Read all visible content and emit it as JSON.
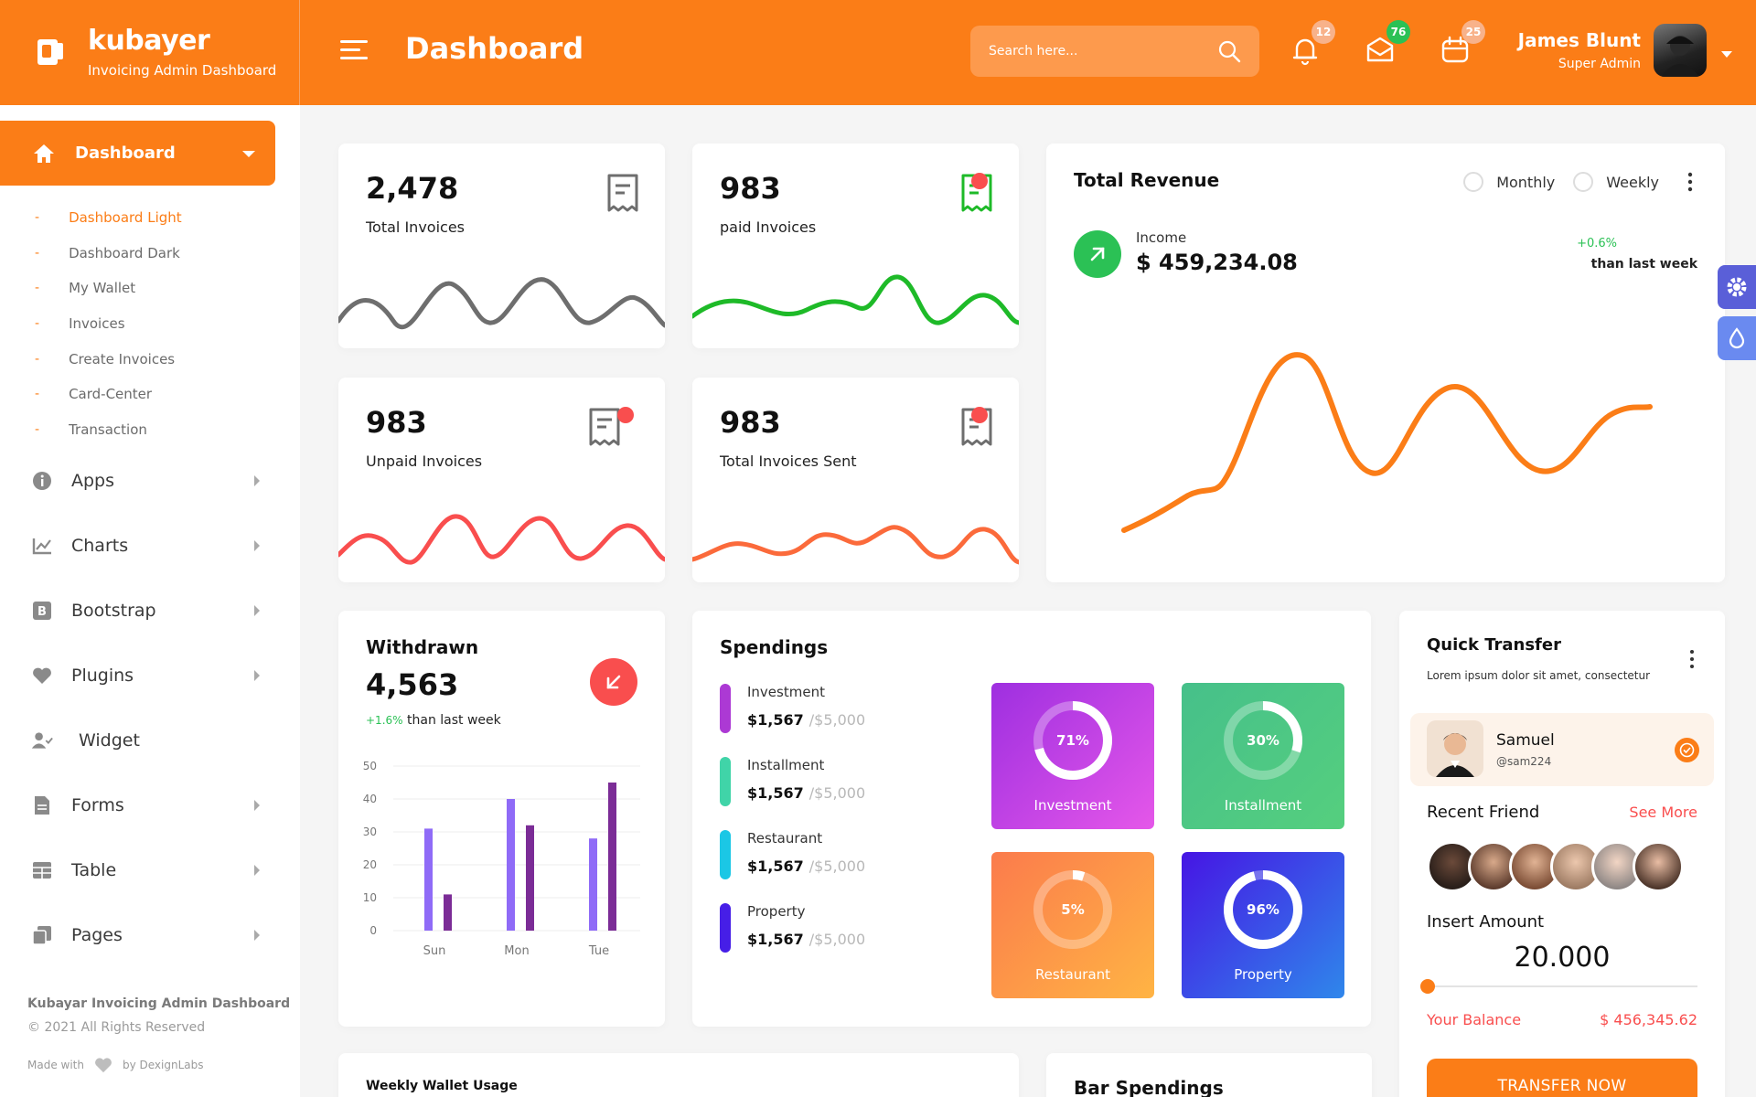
{
  "brand": {
    "name": "kubayer",
    "subtitle": "Invoicing Admin Dashboard"
  },
  "header": {
    "title": "Dashboard",
    "search_placeholder": "Search here...",
    "notifications": {
      "icon": "bell-icon",
      "count": "12",
      "color": "#f8b28a"
    },
    "messages": {
      "icon": "mail-icon",
      "count": "76",
      "color": "#2bc155"
    },
    "calendar": {
      "icon": "calendar-icon",
      "count": "25",
      "color": "#f8b28a"
    },
    "user": {
      "name": "James Blunt",
      "role": "Super Admin"
    }
  },
  "sidebar": {
    "active": "Dashboard",
    "subitems": [
      "Dashboard Light",
      "Dashboard Dark",
      "My Wallet",
      "Invoices",
      "Create Invoices",
      "Card-Center",
      "Transaction"
    ],
    "items": [
      {
        "label": "Apps",
        "icon": "info-icon"
      },
      {
        "label": "Charts",
        "icon": "chart-icon"
      },
      {
        "label": "Bootstrap",
        "icon": "bootstrap-icon"
      },
      {
        "label": "Plugins",
        "icon": "heart-icon"
      },
      {
        "label": "Widget",
        "icon": "user-check-icon"
      },
      {
        "label": "Forms",
        "icon": "file-icon"
      },
      {
        "label": "Table",
        "icon": "table-icon"
      },
      {
        "label": "Pages",
        "icon": "copy-icon"
      }
    ],
    "footer": {
      "title": "Kubayar Invoicing Admin Dashboard",
      "copyright": "© 2021 All Rights Reserved",
      "made_with": "Made with",
      "by": "by DexignLabs"
    }
  },
  "stats": [
    {
      "value": "2,478",
      "label": "Total Invoices",
      "color": "#6e6e6e"
    },
    {
      "value": "983",
      "label": "paid Invoices",
      "color": "#1eba28"
    },
    {
      "value": "983",
      "label": "Unpaid Invoices",
      "color": "#f94e4e"
    },
    {
      "value": "983",
      "label": "Total Invoices Sent",
      "color": "#fb6a3b"
    }
  ],
  "revenue": {
    "title": "Total Revenue",
    "toggle": [
      "Monthly",
      "Weekly"
    ],
    "income_label": "Income",
    "income": "$ 459,234.08",
    "change": "+0.6%",
    "change_note": "than last week"
  },
  "withdrawn": {
    "title": "Withdrawn",
    "value": "4,563",
    "change": "+1.6%",
    "change_note": "than last week"
  },
  "chart_data": {
    "type": "bar",
    "categories": [
      "Sun",
      "Mon",
      "Tue"
    ],
    "series": [
      {
        "values": [
          31,
          40,
          28
        ],
        "color": "#8f6bf7"
      },
      {
        "values": [
          11,
          32,
          45
        ],
        "color": "#7b2c96"
      }
    ],
    "ylim": [
      0,
      50
    ],
    "yticks": [
      0,
      10,
      20,
      30,
      40,
      50
    ]
  },
  "spendings": {
    "title": "Spendings",
    "rows": [
      {
        "name": "Investment",
        "value": "$1,567",
        "max": "/$5,000",
        "color": "#ac39d4"
      },
      {
        "name": "Installment",
        "value": "$1,567",
        "max": "/$5,000",
        "color": "#40d4a8"
      },
      {
        "name": "Restaurant",
        "value": "$1,567",
        "max": "/$5,000",
        "color": "#1bc7e5"
      },
      {
        "name": "Property",
        "value": "$1,567",
        "max": "/$5,000",
        "color": "#461ee7"
      }
    ],
    "tiles": [
      {
        "name": "Investment",
        "pct": "71%",
        "value": 71,
        "from": "#9e2fe0",
        "to": "#e557e9"
      },
      {
        "name": "Installment",
        "pct": "30%",
        "value": 30,
        "from": "#46c08a",
        "to": "#55cf7e"
      },
      {
        "name": "Restaurant",
        "pct": "5%",
        "value": 5,
        "from": "#fb7b4c",
        "to": "#ffb444"
      },
      {
        "name": "Property",
        "pct": "96%",
        "value": 96,
        "from": "#4615e4",
        "to": "#2f87eb"
      }
    ]
  },
  "quick_transfer": {
    "title": "Quick Transfer",
    "subtitle": "Lorem ipsum dolor sit amet, consectetur",
    "user_name": "Samuel",
    "user_handle": "@sam224",
    "recent_title": "Recent Friend",
    "see_more": "See More",
    "amount_label": "Insert Amount",
    "amount": "20.000",
    "amount_slider": 0,
    "balance_label": "Your Balance",
    "balance": "$ 456,345.62",
    "button": "TRANSFER NOW"
  },
  "bottom": {
    "weekly_title": "Weekly Wallet Usage",
    "bar_title": "Bar Spendings"
  }
}
